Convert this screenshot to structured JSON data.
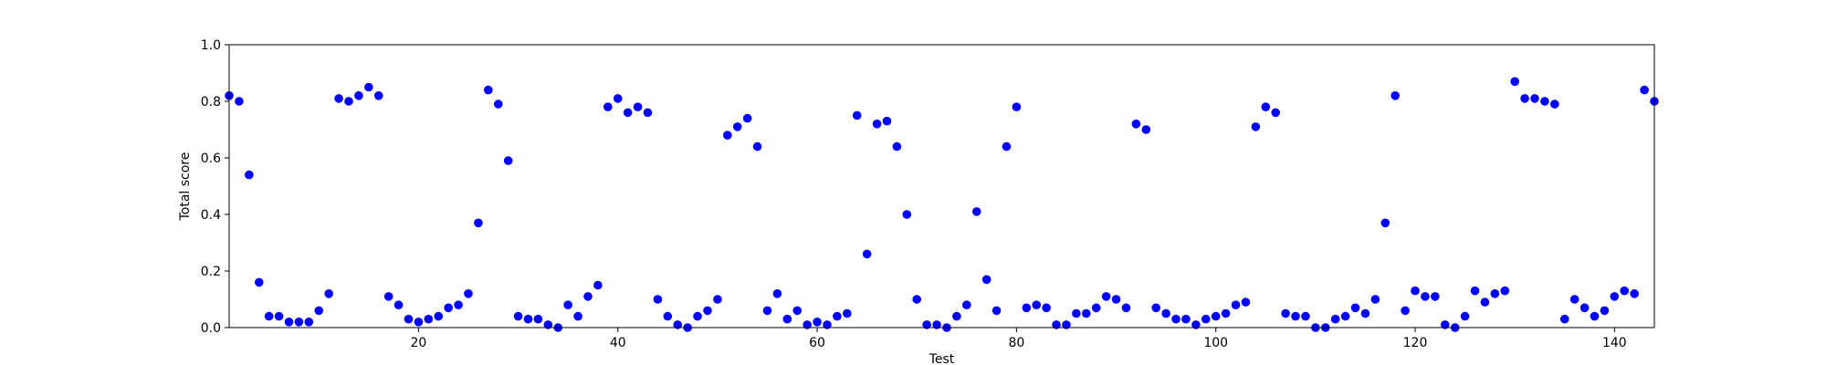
{
  "chart_data": {
    "type": "scatter",
    "xlabel": "Test",
    "ylabel": "Total score",
    "xlim": [
      1,
      144
    ],
    "ylim": [
      0.0,
      1.0
    ],
    "x_ticks": [
      20,
      40,
      60,
      80,
      100,
      120,
      140
    ],
    "y_ticks": [
      0.0,
      0.2,
      0.4,
      0.6,
      0.8,
      1.0
    ],
    "x_tick_labels": [
      "20",
      "40",
      "60",
      "80",
      "100",
      "120",
      "140"
    ],
    "y_tick_labels": [
      "0.0",
      "0.2",
      "0.4",
      "0.6",
      "0.8",
      "1.0"
    ],
    "grid": false,
    "marker_color": "#0000ff",
    "series": [
      {
        "x": [
          1,
          2,
          3,
          4,
          5,
          6,
          7,
          8,
          9,
          10,
          11,
          12,
          13,
          14,
          15,
          16,
          17,
          18,
          19,
          20,
          21,
          22,
          23,
          24,
          25,
          26,
          27,
          28,
          29,
          30,
          31,
          32,
          33,
          34,
          35,
          36,
          37,
          38,
          39,
          40,
          41,
          42,
          43,
          44,
          45,
          46,
          47,
          48,
          49,
          50,
          51,
          52,
          53,
          54,
          55,
          56,
          57,
          58,
          59,
          60,
          61,
          62,
          63,
          64,
          65,
          66,
          67,
          68,
          69,
          70,
          71,
          72,
          73,
          74,
          75,
          76,
          77,
          78,
          79,
          80,
          81,
          82,
          83,
          84,
          85,
          86,
          87,
          88,
          89,
          90,
          91,
          92,
          93,
          94,
          95,
          96,
          97,
          98,
          99,
          100,
          101,
          102,
          103,
          104,
          105,
          106,
          107,
          108,
          109,
          110,
          111,
          112,
          113,
          114,
          115,
          116,
          117,
          118,
          119,
          120,
          121,
          122,
          123,
          124,
          125,
          126,
          127,
          128,
          129,
          130,
          131,
          132,
          133,
          134,
          135,
          136,
          137,
          138,
          139,
          140,
          141,
          142,
          143,
          144
        ],
        "y": [
          0.82,
          0.8,
          0.54,
          0.16,
          0.04,
          0.04,
          0.02,
          0.02,
          0.02,
          0.06,
          0.12,
          0.81,
          0.8,
          0.82,
          0.85,
          0.82,
          0.11,
          0.08,
          0.03,
          0.02,
          0.03,
          0.04,
          0.07,
          0.08,
          0.12,
          0.37,
          0.84,
          0.79,
          0.59,
          0.04,
          0.03,
          0.03,
          0.01,
          0.0,
          0.08,
          0.04,
          0.11,
          0.15,
          0.78,
          0.81,
          0.76,
          0.78,
          0.76,
          0.1,
          0.04,
          0.01,
          0.0,
          0.04,
          0.06,
          0.1,
          0.68,
          0.71,
          0.74,
          0.64,
          0.06,
          0.12,
          0.03,
          0.06,
          0.01,
          0.02,
          0.01,
          0.04,
          0.05,
          0.75,
          0.26,
          0.72,
          0.73,
          0.64,
          0.4,
          0.1,
          0.01,
          0.01,
          0.0,
          0.04,
          0.08,
          0.41,
          0.17,
          0.06,
          0.64,
          0.78,
          0.07,
          0.08,
          0.07,
          0.01,
          0.01,
          0.05,
          0.05,
          0.07,
          0.11,
          0.1,
          0.07,
          0.72,
          0.7,
          0.07,
          0.05,
          0.03,
          0.03,
          0.01,
          0.03,
          0.04,
          0.05,
          0.08,
          0.09,
          0.71,
          0.78,
          0.76,
          0.05,
          0.04,
          0.04,
          0.0,
          0.0,
          0.03,
          0.04,
          0.07,
          0.05,
          0.1,
          0.37,
          0.82,
          0.06,
          0.13,
          0.11,
          0.11,
          0.01,
          0.0,
          0.04,
          0.13,
          0.09,
          0.12,
          0.13,
          0.87,
          0.81,
          0.81,
          0.8,
          0.79,
          0.03,
          0.1,
          0.07,
          0.04,
          0.06,
          0.11,
          0.13,
          0.12,
          0.84,
          0.8
        ]
      }
    ]
  }
}
